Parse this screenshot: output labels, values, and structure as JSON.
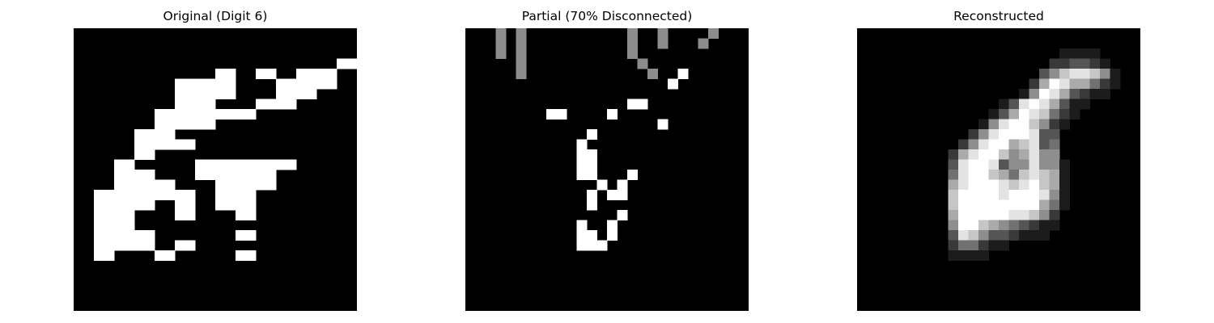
{
  "chart_data": [
    {
      "type": "heatmap",
      "title": "Original (Digit 6)",
      "grid": false,
      "axes": "off",
      "colormap": "gray",
      "value_range": [
        0,
        1
      ],
      "rows": [
        "............................",
        "............................",
        "............................",
        "..........................##",
        "..............##..##..####..",
        "..........######....######..",
        "..........######....####....",
        "..........####....####......",
        "........##########..........",
        "........######..............",
        "......####..................",
        "......######................",
        "......##....................",
        "....##......##########......",
        "....####....########........",
        "....######....######........",
        "..##########..####..........",
        "..######..##..####..........",
        "..####....##....##..........",
        "..####......................",
        "..######........##..........",
        "..######..##................",
        "..##....##......##..........",
        "............................",
        "............................",
        "............................",
        "............................",
        "............................"
      ]
    },
    {
      "type": "heatmap",
      "title": "Partial (70% Disconnected)",
      "grid": false,
      "axes": "off",
      "colormap": "gray",
      "value_range": [
        0,
        1
      ],
      "rows": [
        "0..*.*..0.......*..*....*..0",
        "0..*.*..00.0....*..*...*...0",
        "00.*.*..0..000..*00..0..0..0",
        "00...*..0...0.0..*.00..0...0",
        "0..0.*..0..00..0..*..#..0..0",
        "0...0..0..0...0.0.0.#..0...0",
        "0....0.0......0..0..00.0....",
        "00.0..0.0....0..##..0.0..0..",
        "0.......##0...#0..0...0..0..",
        "0..0..0...00.0..0..#..0..0..",
        "0.0.0......0#.0.....0..0.0..",
        "0.......0..#....0...00..0...",
        "00...0.....##.0..0...0...0..",
        "0.0.0..0..0##..0.0...0.0.00.",
        "0.000......##.0.#0..0.0..0..",
        "000.0..0..00.#.#..0..0..0...",
        "0000..00.0..#.##..0.0.00.0.0",
        "00..0.00..0.#..0.0.00.00.0..",
        "00...0.00.0....#..00.0..0..0",
        "0...0...0..#..#.0.0..0..0...",
        "00.0.000.0.##.#0..000..0.0..",
        "0.0..000...###....00..0....0",
        "0000000000..00.0.0.0..00.0..",
        "00..0..0..00..0..00.0.0.00.0",
        "0.0....0...00.0.0.....0..0..",
        "0.0..0.00....0....00..00.0..",
        ".0.0..00.0.0..0..00..00..0..",
        "0.0..00..0..0..0.0.0..00.0.0"
      ]
    },
    {
      "type": "heatmap",
      "title": "Reconstructed",
      "grid": false,
      "axes": "off",
      "colormap": "gray",
      "value_range": [
        0,
        1
      ],
      "rows": [
        "0000000000000000000000000000",
        "0000000000000000000000000000",
        "0000000000000000000011110000",
        "0000000000000000000223321000",
        "0000000000000000003578875100",
        "0000000000000000026986642100",
        "0000000000000000159863211000",
        "0000000000000013898631100000",
        "0000000000000136987421000000",
        "0000000000001589975210000000",
        "0000000000025899983300000000",
        "0000000000258996783400000000",
        "0000000002689975685500000000",
        "0000000003899835585510000000",
        "0000000004899764787610000000",
        "0000000006899987897610000000",
        "0000000007999989998510000000",
        "0000000007999999996410000000",
        "0000000006999998875200000000",
        "0000000005997654321100000000",
        "0000000003875332111000000000",
        "0000000002442110000000000000",
        "0000000001111000000000000000",
        "0000000000000000000000000000",
        "0000000000000000000000000000",
        "0000000000000000000000000000",
        "0000000000000000000000000000",
        "0000000000000000000000000000"
      ]
    }
  ]
}
